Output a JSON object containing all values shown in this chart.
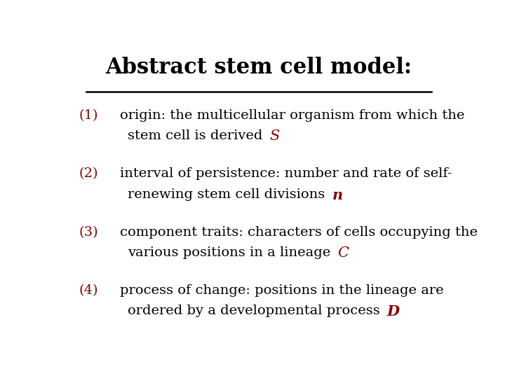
{
  "title": "Abstract stem cell model:",
  "title_color": "#000000",
  "title_fontsize": 22,
  "title_fontweight": "bold",
  "title_fontfamily": "DejaVu Serif",
  "line_color": "#000000",
  "background_color": "#ffffff",
  "items": [
    {
      "number": "(1)",
      "line1": "origin: the multicellular organism from which the",
      "line2": "stem cell is derived",
      "variable": "S",
      "variable_bold": false,
      "variable_italic": true
    },
    {
      "number": "(2)",
      "line1": "interval of persistence: number and rate of self-",
      "line2": "renewing stem cell divisions",
      "variable": "n",
      "variable_bold": true,
      "variable_italic": true
    },
    {
      "number": "(3)",
      "line1": "component traits: characters of cells occupying the",
      "line2": "various positions in a lineage",
      "variable": "C",
      "variable_bold": false,
      "variable_italic": true
    },
    {
      "number": "(4)",
      "line1": "process of change: positions in the lineage are",
      "line2": "ordered by a developmental process",
      "variable": "D",
      "variable_bold": true,
      "variable_italic": true
    }
  ],
  "number_color": "#800000",
  "text_color": "#000000",
  "variable_color": "#800000",
  "text_fontsize": 14,
  "text_fontfamily": "DejaVu Serif"
}
